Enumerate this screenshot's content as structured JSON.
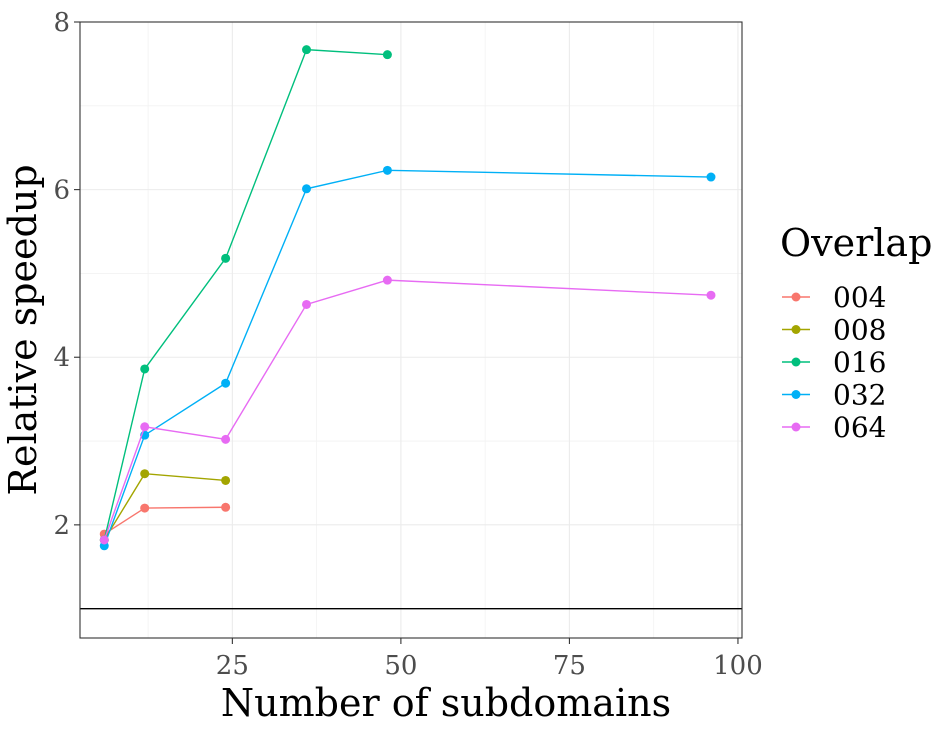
{
  "chart_data": {
    "type": "line",
    "title": "",
    "xlabel": "Number of subdomains",
    "ylabel": "Relative speedup",
    "xlim": [
      2.4,
      100.6
    ],
    "ylim": [
      0.65,
      8.0
    ],
    "xticks": [
      25,
      50,
      75,
      100
    ],
    "yticks": [
      2,
      4,
      6,
      8
    ],
    "x_tick_labels": [
      "25",
      "50",
      "75",
      "100"
    ],
    "y_tick_labels": [
      "2",
      "4",
      "6",
      "8"
    ],
    "x_minor_grid": [
      12.5,
      37.5,
      62.5,
      87.5
    ],
    "y_minor_grid": [
      1,
      3,
      5,
      7
    ],
    "reference_line": 1,
    "legend_title": "Overlap",
    "legend_position": "right",
    "series": [
      {
        "name": "004",
        "color": "#F8766D",
        "x": [
          6,
          12,
          24
        ],
        "y": [
          1.89,
          2.2,
          2.21
        ]
      },
      {
        "name": "008",
        "color": "#A3A500",
        "x": [
          6,
          12,
          24
        ],
        "y": [
          1.82,
          2.61,
          2.53
        ]
      },
      {
        "name": "016",
        "color": "#00BF7D",
        "x": [
          6,
          12,
          24,
          36,
          48
        ],
        "y": [
          1.82,
          3.86,
          5.18,
          7.67,
          7.61
        ]
      },
      {
        "name": "032",
        "color": "#00B0F6",
        "x": [
          6,
          12,
          24,
          36,
          48,
          96
        ],
        "y": [
          1.75,
          3.07,
          3.69,
          6.01,
          6.23,
          6.15
        ]
      },
      {
        "name": "064",
        "color": "#E76BF3",
        "x": [
          6,
          12,
          24,
          36,
          48,
          96
        ],
        "y": [
          1.82,
          3.17,
          3.02,
          4.63,
          4.92,
          4.74
        ]
      }
    ]
  }
}
